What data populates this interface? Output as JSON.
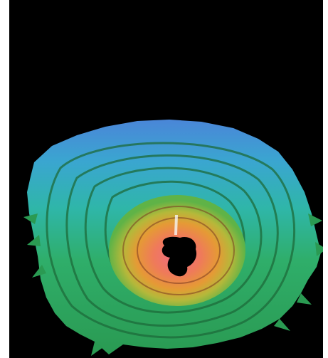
{
  "image": {
    "subject": "pit-contour-terrain-render",
    "colors": {
      "background": "#000000",
      "outer_blue": "#3d8fd6",
      "cyan": "#33c2c0",
      "green": "#2fae52",
      "yellow_green": "#a7c23a",
      "orange": "#e8872e",
      "pink": "#f06a86",
      "hole": "#000000"
    }
  }
}
